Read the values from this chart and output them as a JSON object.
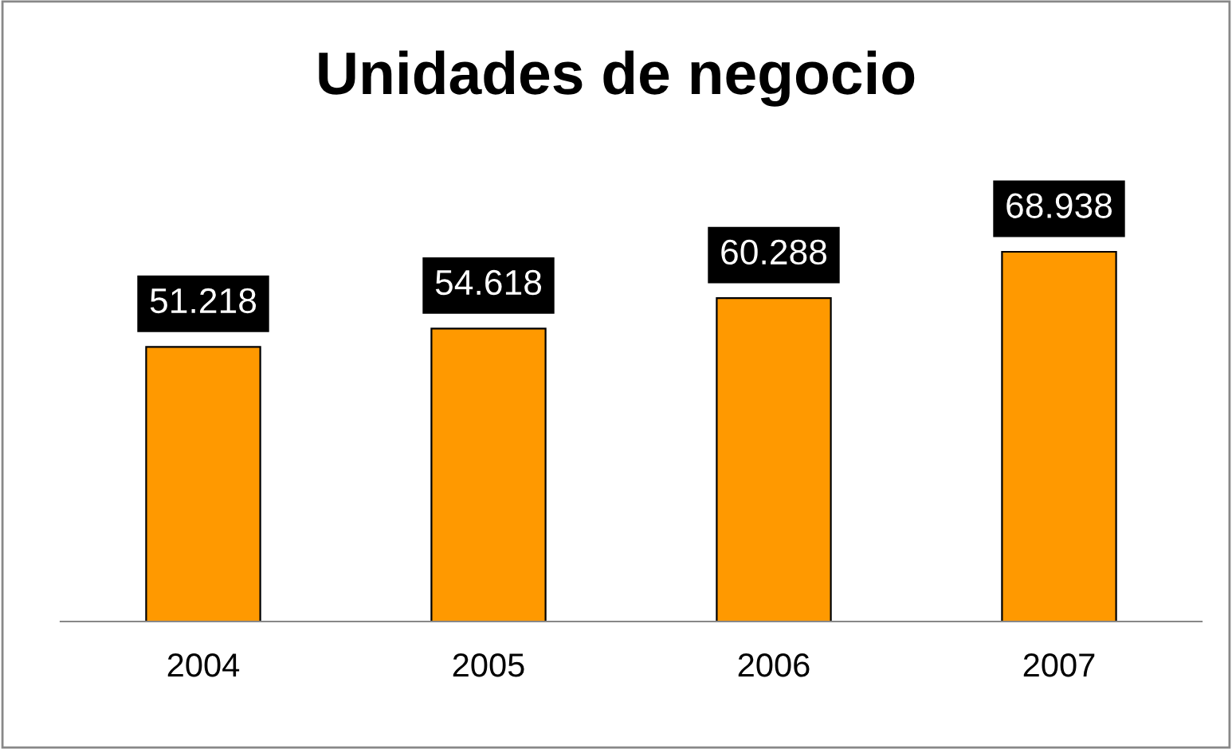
{
  "chart_data": {
    "type": "bar",
    "title": "Unidades de negocio",
    "categories": [
      "2004",
      "2005",
      "2006",
      "2007"
    ],
    "values": [
      51218,
      54618,
      60288,
      68938
    ],
    "value_labels": [
      "51.218",
      "54.618",
      "60.288",
      "68.938"
    ],
    "color": "#ff9900",
    "grid": false,
    "legend": false
  }
}
